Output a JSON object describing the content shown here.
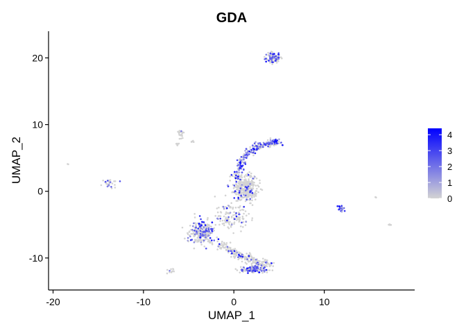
{
  "chart_data": {
    "type": "scatter",
    "title": "GDA",
    "xlabel": "UMAP_1",
    "ylabel": "UMAP_2",
    "xlim": [
      -20.5,
      20
    ],
    "ylim": [
      -14.8,
      24
    ],
    "xticks": [
      -20,
      -10,
      0,
      10
    ],
    "yticks": [
      -10,
      0,
      10,
      20
    ],
    "grid": false,
    "legend": {
      "position": "right",
      "values": [
        4,
        3,
        2,
        1,
        0
      ],
      "color_low": "#d3d3d3",
      "color_high": "#0000ff",
      "min": 0,
      "max": 4.4
    },
    "clusters": [
      {
        "name": "top",
        "cx": 4.4,
        "cy": 20.0,
        "sx": 0.8,
        "sy": 0.6,
        "n": 110,
        "expr": 0.35
      },
      {
        "name": "arc-upper",
        "path": [
          [
            0.2,
            2.0
          ],
          [
            1.0,
            4.8
          ],
          [
            2.5,
            6.7
          ],
          [
            4.2,
            7.3
          ],
          [
            4.9,
            7.4
          ]
        ],
        "spread": 0.45,
        "n": 240,
        "expr": 0.55
      },
      {
        "name": "center",
        "cx": 1.3,
        "cy": 0.5,
        "sx": 1.1,
        "sy": 1.7,
        "n": 330,
        "expr": 0.12
      },
      {
        "name": "left-mid",
        "cx": -3.5,
        "cy": -6.2,
        "sx": 1.1,
        "sy": 1.4,
        "n": 260,
        "expr": 0.25
      },
      {
        "name": "lower-band",
        "path": [
          [
            -1.5,
            -8.0
          ],
          [
            0.5,
            -9.6
          ],
          [
            2.5,
            -10.6
          ],
          [
            4.0,
            -11.0
          ]
        ],
        "spread": 0.55,
        "n": 210,
        "expr": 0.12
      },
      {
        "name": "bottom",
        "cx": 2.2,
        "cy": -11.7,
        "sx": 1.4,
        "sy": 0.45,
        "n": 160,
        "expr": 0.35
      },
      {
        "name": "mid-spread",
        "cx": -0.2,
        "cy": -4.0,
        "sx": 1.6,
        "sy": 1.5,
        "n": 130,
        "expr": 0.15
      },
      {
        "name": "small-left",
        "cx": -13.8,
        "cy": 1.2,
        "sx": 0.8,
        "sy": 0.5,
        "n": 28,
        "expr": 0.2
      },
      {
        "name": "far-right",
        "cx": 11.9,
        "cy": -2.6,
        "sx": 0.35,
        "sy": 0.35,
        "n": 28,
        "expr": 0.5
      },
      {
        "name": "upper-small",
        "cx": -5.8,
        "cy": 8.6,
        "sx": 0.4,
        "sy": 0.6,
        "n": 22,
        "expr": 0.05
      },
      {
        "name": "upper-small-2",
        "cx": -6.2,
        "cy": 7.1,
        "sx": 0.2,
        "sy": 0.15,
        "n": 6,
        "expr": 0.3
      },
      {
        "name": "upper-small-3",
        "cx": -4.6,
        "cy": 7.5,
        "sx": 0.2,
        "sy": 0.15,
        "n": 5,
        "expr": 0.0
      },
      {
        "name": "bottom-left",
        "cx": -7.0,
        "cy": -11.9,
        "sx": 0.3,
        "sy": 0.4,
        "n": 12,
        "expr": 0.1
      },
      {
        "name": "right-tiny",
        "cx": 17.3,
        "cy": -5.0,
        "sx": 0.15,
        "sy": 0.12,
        "n": 5,
        "expr": 0.0
      },
      {
        "name": "right-tiny-2",
        "cx": 15.7,
        "cy": -0.9,
        "sx": 0.1,
        "sy": 0.08,
        "n": 3,
        "expr": 0.0
      },
      {
        "name": "far-left",
        "cx": -18.4,
        "cy": 4.1,
        "sx": 0.08,
        "sy": 0.08,
        "n": 2,
        "expr": 0.0
      }
    ]
  }
}
